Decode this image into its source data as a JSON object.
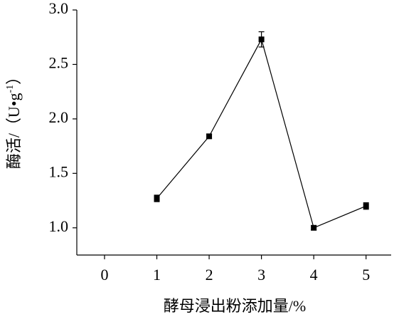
{
  "chart_data": {
    "type": "line",
    "x_label": "酵母浸出粉添加量/%",
    "y_label": [
      "酶活/（U•g",
      "-1",
      "）"
    ],
    "x": [
      1,
      2,
      3,
      4,
      5
    ],
    "series": [
      {
        "color": "#000000",
        "values": [
          1.27,
          1.84,
          2.73,
          1.0,
          1.2
        ],
        "errors": [
          0.03,
          0.02,
          0.07,
          0.02,
          0.03
        ]
      }
    ],
    "xlim": [
      -0.53,
      5.48
    ],
    "xticks": [
      0,
      1,
      2,
      3,
      4,
      5
    ],
    "ylim": [
      0.75,
      3.0
    ],
    "yticks": [
      {
        "value": 1,
        "label": "1.0"
      },
      {
        "value": 1.5,
        "label": "1.5"
      },
      {
        "value": 2,
        "label": "2.0"
      },
      {
        "value": 2.5,
        "label": "2.5"
      },
      {
        "value": 3,
        "label": "3.0"
      }
    ]
  }
}
